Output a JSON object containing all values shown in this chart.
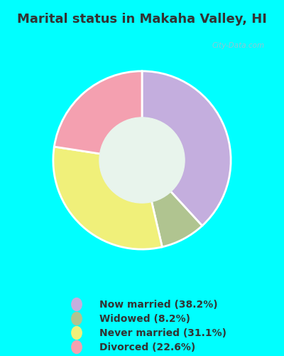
{
  "title": "Marital status in Makaha Valley, HI",
  "categories": [
    "Now married (38.2%)",
    "Widowed (8.2%)",
    "Never married (31.1%)",
    "Divorced (22.6%)"
  ],
  "values": [
    38.2,
    8.2,
    31.1,
    22.6
  ],
  "colors": [
    "#c4aede",
    "#b0c490",
    "#f0f07a",
    "#f4a0b0"
  ],
  "outer_bg": "#00ffff",
  "chart_bg": "#e8f4ec",
  "title_fontsize": 13,
  "title_color": "#333333",
  "watermark": "City-Data.com",
  "donut_width": 0.52,
  "start_angle": 90
}
